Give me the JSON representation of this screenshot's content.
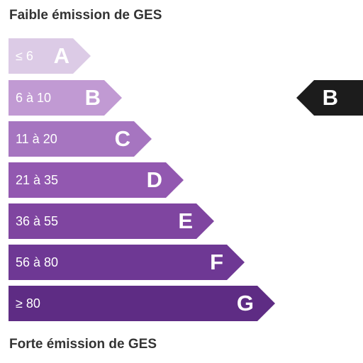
{
  "headings": {
    "top": "Faible émission de GES",
    "bottom": "Forte émission de GES"
  },
  "classes": [
    {
      "letter": "A",
      "range": "≤ 6",
      "color": "#dccbe6"
    },
    {
      "letter": "B",
      "range": "6 à 10",
      "color": "#c19ad3"
    },
    {
      "letter": "C",
      "range": "11 à 20",
      "color": "#a675c0"
    },
    {
      "letter": "D",
      "range": "21 à 35",
      "color": "#9258b0"
    },
    {
      "letter": "E",
      "range": "36 à 55",
      "color": "#7f45a0"
    },
    {
      "letter": "F",
      "range": "56 à 80",
      "color": "#6e3894"
    },
    {
      "letter": "G",
      "range": "≥ 80",
      "color": "#5e2c84"
    }
  ],
  "current_rating": {
    "letter": "B",
    "color": "#1c1c1c"
  }
}
